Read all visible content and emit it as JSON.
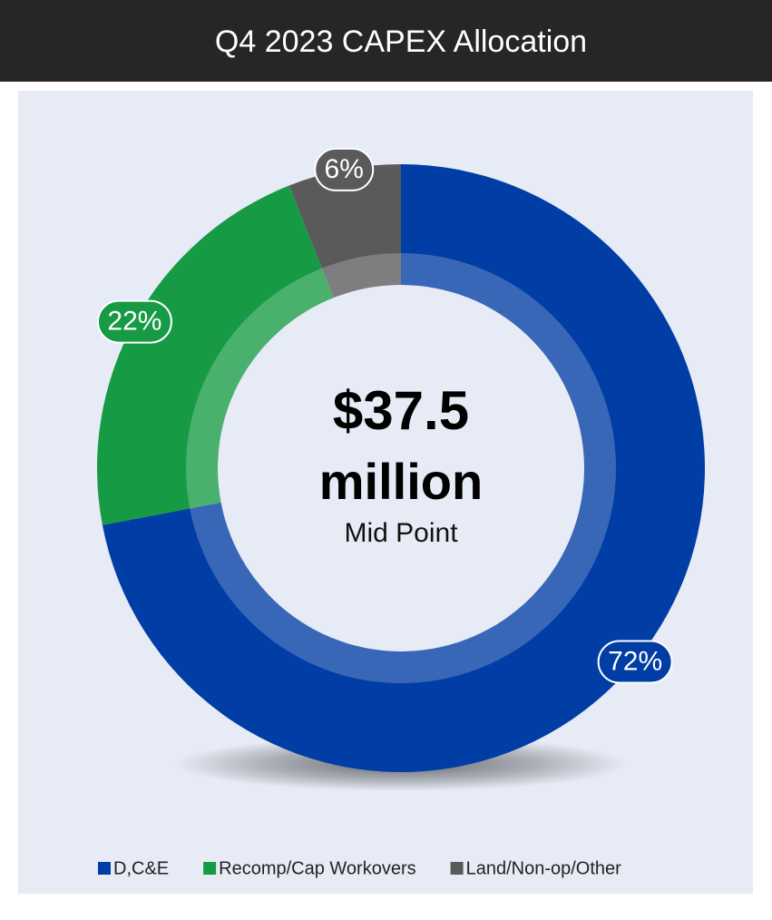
{
  "chart_data": {
    "type": "donut",
    "title": "Q4 2023 CAPEX Allocation",
    "categories": [
      "D,C&E",
      "Recomp/Cap Workovers",
      "Land/Non-op/Other"
    ],
    "values": [
      72,
      22,
      6
    ],
    "value_labels": [
      "72%",
      "22%",
      "6%"
    ],
    "colors": [
      "#003da5",
      "#169a44",
      "#5a5a5a"
    ],
    "center_value": "$37.5",
    "center_unit": "million",
    "center_label": "Mid Point",
    "legend": "bottom"
  }
}
